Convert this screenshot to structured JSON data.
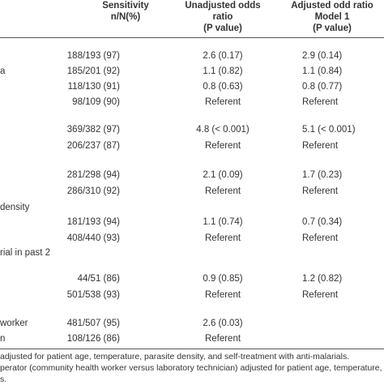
{
  "header": {
    "col1": [
      "Sensitivity",
      "n/N(%)"
    ],
    "col2": [
      "Unadjusted odds",
      "ratio",
      "(P value)"
    ],
    "col3": [
      "Adjusted odd ratio",
      "Model 1",
      "(P value)"
    ]
  },
  "rows": [
    {
      "label": "",
      "sens": "188/193 (97)",
      "unadj": "2.6 (0.17)",
      "adj": "2.9 (0.14)"
    },
    {
      "label": "a",
      "sens": "185/201 (92)",
      "unadj": "1.1 (0.82)",
      "adj": "1.1 (0.84)"
    },
    {
      "label": "",
      "sens": "118/130 (91)",
      "unadj": "0.8 (0.63)",
      "adj": "0.8 (0.77)"
    },
    {
      "label": "",
      "sens": "98/109 (90)",
      "unadj": "Referent",
      "adj": "Referent"
    },
    {
      "label": "",
      "sens": "369/382 (97)",
      "unadj": "4.8 (< 0.001)",
      "adj": "5.1 (< 0.001)"
    },
    {
      "label": "",
      "sens": "206/237 (87)",
      "unadj": "Referent",
      "adj": "Referent"
    },
    {
      "label": "",
      "sens": "281/298 (94)",
      "unadj": "2.1 (0.09)",
      "adj": "1.7 (0.23)"
    },
    {
      "label": "",
      "sens": "286/310 (92)",
      "unadj": "Referent",
      "adj": "Referent"
    },
    {
      "label": "density",
      "sens": "",
      "unadj": "",
      "adj": ""
    },
    {
      "label": "",
      "sens": "181/193 (94)",
      "unadj": "1.1 (0.74)",
      "adj": "0.7 (0.34)"
    },
    {
      "label": "",
      "sens": "408/440 (93)",
      "unadj": "Referent",
      "adj": "Referent"
    },
    {
      "label": "rial in past 2",
      "sens": "",
      "unadj": "",
      "adj": ""
    },
    {
      "label": "",
      "sens": "44/51 (86)",
      "unadj": "0.9 (0.85)",
      "adj": "1.2 (0.82)"
    },
    {
      "label": "",
      "sens": "501/538 (93)",
      "unadj": "Referent",
      "adj": "Referent"
    },
    {
      "label": "worker",
      "sens": "481/507 (95)",
      "unadj": "2.6 (0.03)",
      "adj": ""
    },
    {
      "label": "n",
      "sens": "108/126 (86)",
      "unadj": "Referent",
      "adj": ""
    }
  ],
  "footnotes": [
    "adjusted for patient age, temperature, parasite density, and self-treatment with anti-malarials.",
    "perator (community health worker versus laboratory technician) adjusted for patient age, temperature, pa",
    "s."
  ]
}
